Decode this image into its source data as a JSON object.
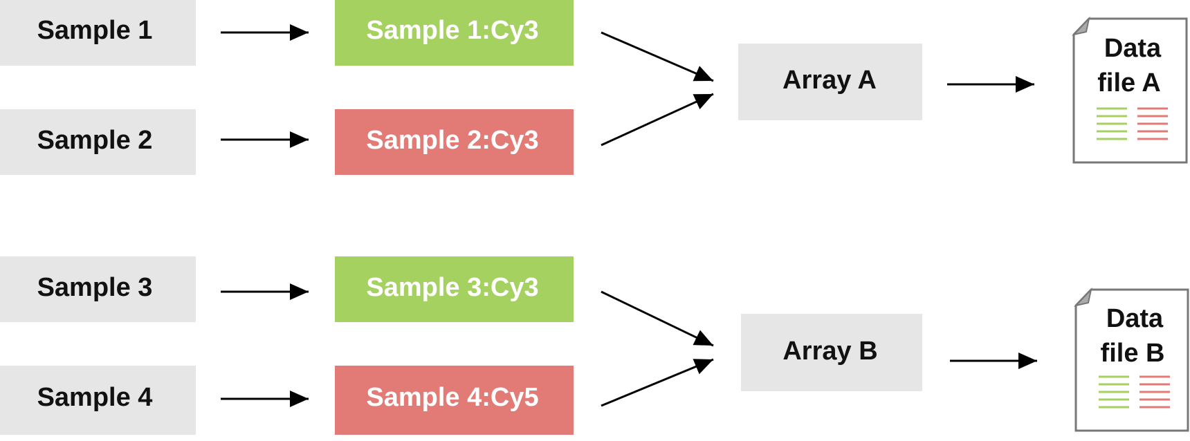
{
  "samples": [
    "Sample 1",
    "Sample 2",
    "Sample 3",
    "Sample 4"
  ],
  "labeled": [
    "Sample 1:Cy3",
    "Sample 2:Cy3",
    "Sample 3:Cy3",
    "Sample 4:Cy5"
  ],
  "arrays": [
    "Array A",
    "Array B"
  ],
  "files": [
    {
      "lines": [
        "Data",
        "file A"
      ]
    },
    {
      "lines": [
        "Data",
        "file B"
      ]
    }
  ]
}
